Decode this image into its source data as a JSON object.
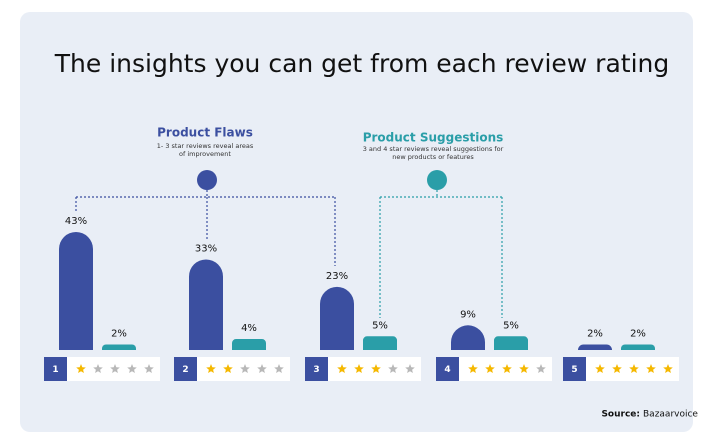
{
  "chart_data": {
    "type": "bar",
    "title": "The insights you can get from each review rating",
    "categories": [
      "1",
      "2",
      "3",
      "4",
      "5"
    ],
    "series": [
      {
        "color": "#3b4fa0",
        "values": [
          43,
          33,
          23,
          9,
          2
        ],
        "value_labels": [
          "43%",
          "33%",
          "23%",
          "9%",
          "2%"
        ]
      },
      {
        "color": "#2a9ea8",
        "values": [
          2,
          4,
          5,
          5,
          2
        ],
        "value_labels": [
          "2%",
          "4%",
          "5%",
          "5%",
          "2%"
        ]
      }
    ],
    "annotations": {
      "flaws_title": "Product Flaws",
      "flaws_text": [
        "1- 3 star reviews reveal areas",
        "of improvement"
      ],
      "suggestions_title": "Product Suggestions",
      "suggestions_text": [
        "3 and 4 star reviews reveal suggestions for",
        "new products or features"
      ],
      "source_label": "Source:",
      "source": "Bazaarvoice"
    }
  }
}
